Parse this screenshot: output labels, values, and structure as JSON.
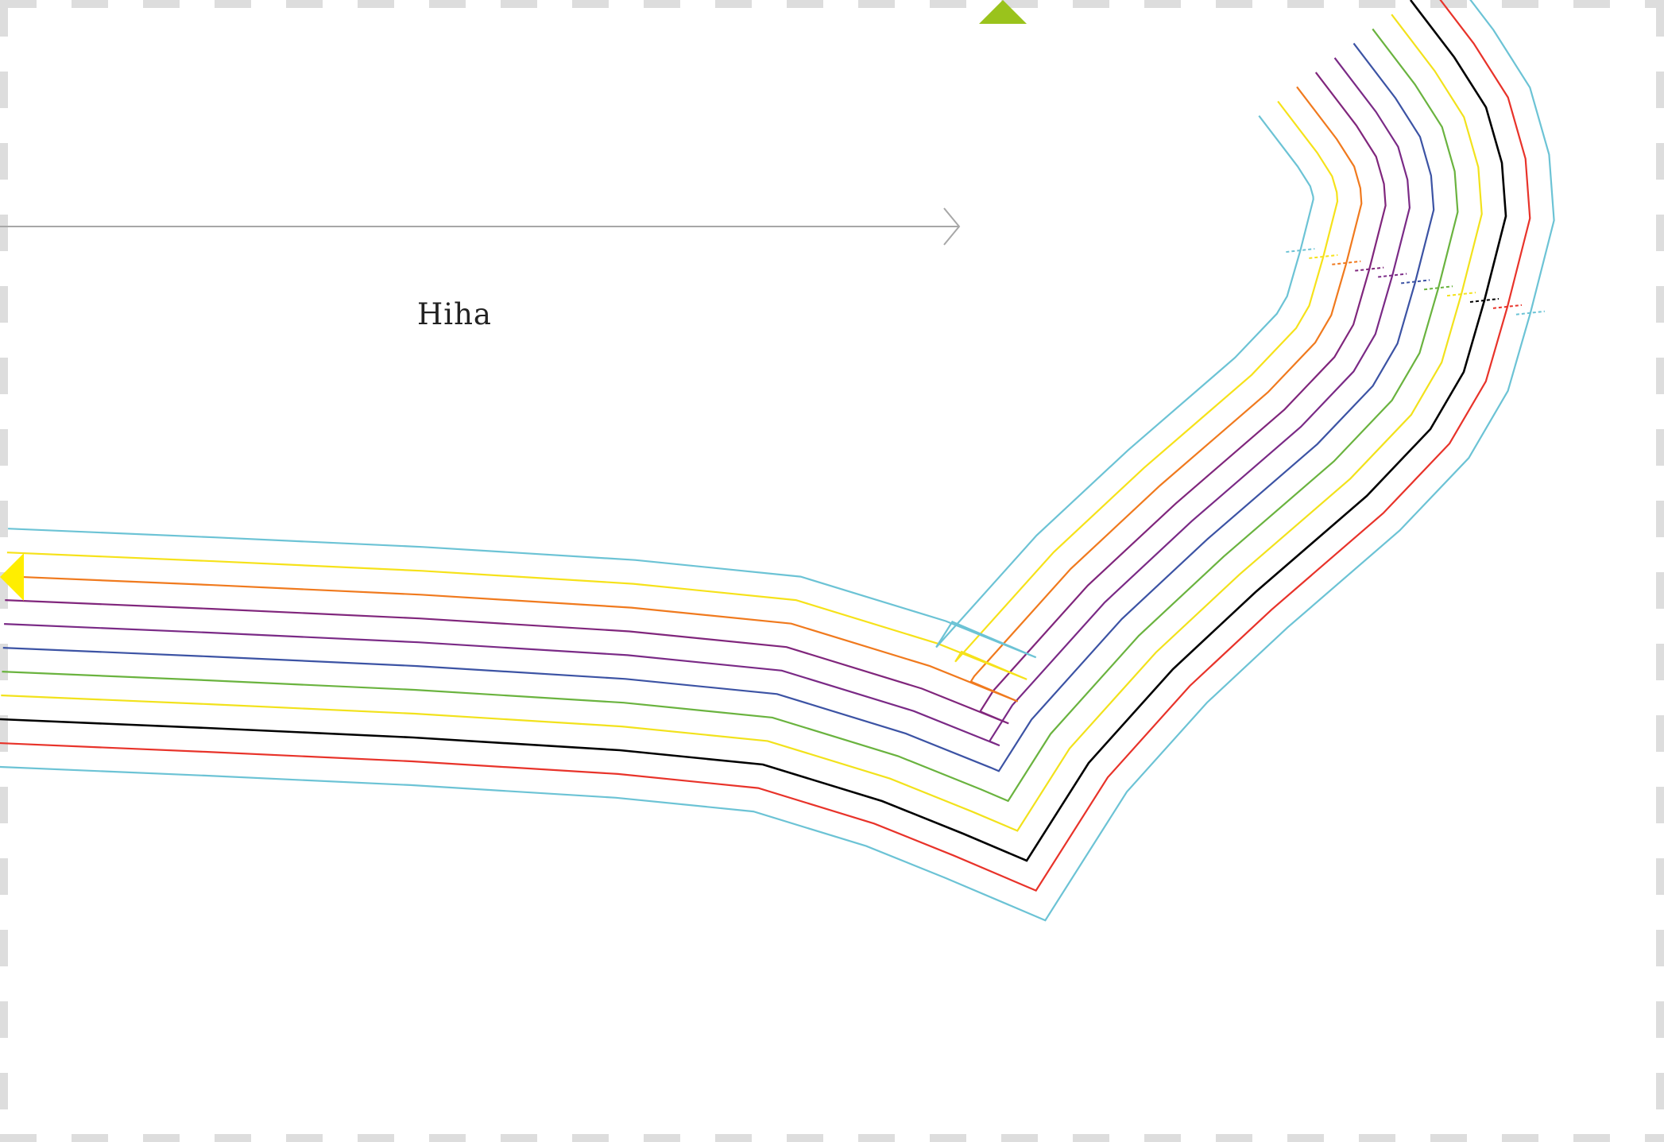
{
  "pattern": {
    "piece_name": "Hiha",
    "size_colors": [
      "#6cc3d5",
      "#e8332a",
      "#000000",
      "#f2e21c",
      "#6ab33f",
      "#3c53a4",
      "#7a2a86",
      "#80267c",
      "#f07a1e",
      "#f6e21a",
      "#6cc3d5"
    ],
    "grainline_color": "#a7a7a7",
    "border_color": "#dddddd",
    "notch_top_color": "#9ac31c",
    "notch_left_color": "#ffee00"
  }
}
